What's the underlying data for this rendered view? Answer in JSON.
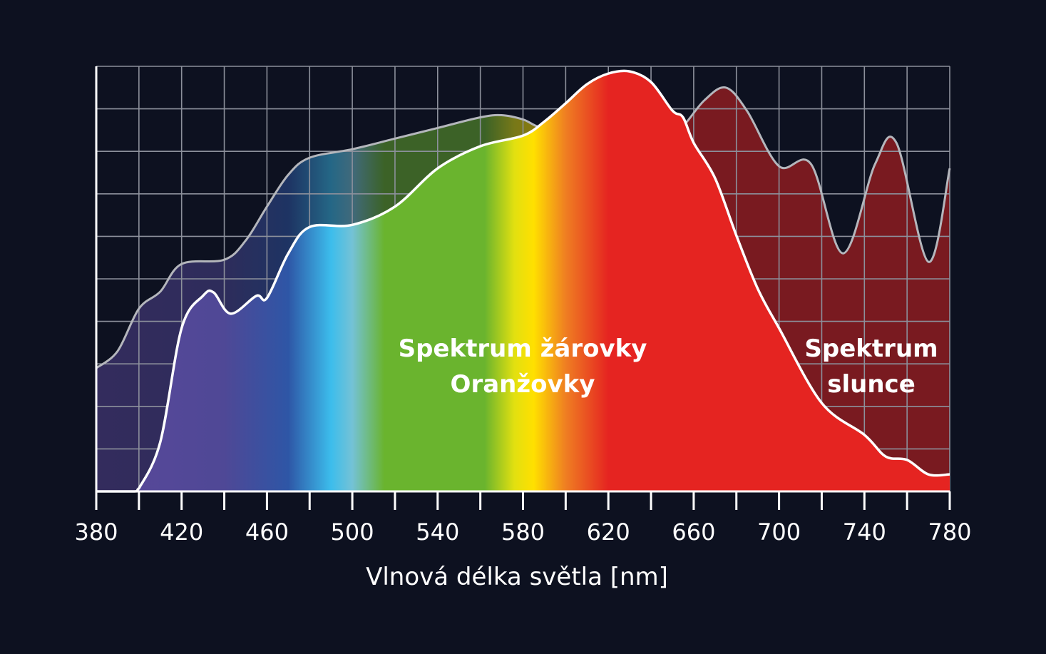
{
  "chart_data": {
    "type": "area",
    "title": "",
    "xlabel": "Vlnová délka světla [nm]",
    "ylabel": "",
    "xlim": [
      380,
      780
    ],
    "ylim": [
      0,
      10
    ],
    "grid": true,
    "x_ticks": [
      380,
      420,
      460,
      500,
      540,
      580,
      620,
      660,
      700,
      740,
      780
    ],
    "x_tick_labels": [
      "380",
      "420",
      "460",
      "500",
      "540",
      "580",
      "620",
      "660",
      "700",
      "740",
      "780"
    ],
    "series": [
      {
        "name": "Spektrum slunce",
        "label_lines": [
          "Spektrum",
          "slunce"
        ],
        "x": [
          380,
          390,
          400,
          410,
          420,
          440,
          450,
          460,
          470,
          480,
          500,
          520,
          540,
          560,
          570,
          580,
          590,
          610,
          630,
          650,
          655,
          665,
          675,
          685,
          700,
          715,
          730,
          745,
          755,
          770,
          780
        ],
        "y": [
          2.9,
          3.3,
          4.3,
          4.7,
          5.35,
          5.45,
          5.9,
          6.7,
          7.45,
          7.85,
          8.05,
          8.3,
          8.55,
          8.8,
          8.85,
          8.75,
          8.55,
          8.6,
          8.65,
          8.6,
          8.6,
          9.2,
          9.5,
          8.95,
          7.65,
          7.7,
          5.6,
          7.7,
          8.2,
          5.4,
          7.6
        ],
        "stroke": "#b4b6bc"
      },
      {
        "name": "Spektrum žárovky Oranžovky",
        "label_lines": [
          "Spektrum žárovky",
          "Oranžovky"
        ],
        "x": [
          380,
          398,
          400,
          410,
          420,
          430,
          435,
          443,
          455,
          460,
          470,
          480,
          500,
          520,
          540,
          560,
          580,
          590,
          600,
          610,
          620,
          630,
          640,
          650,
          655,
          660,
          670,
          680,
          690,
          700,
          720,
          740,
          750,
          760,
          770,
          780
        ],
        "y": [
          0,
          0,
          0.07,
          1.16,
          3.84,
          4.6,
          4.68,
          4.18,
          4.6,
          4.55,
          5.6,
          6.22,
          6.27,
          6.7,
          7.6,
          8.12,
          8.37,
          8.7,
          9.13,
          9.58,
          9.83,
          9.88,
          9.63,
          8.96,
          8.8,
          8.2,
          7.37,
          6.02,
          4.77,
          3.84,
          2.08,
          1.33,
          0.82,
          0.74,
          0.4,
          0.4
        ],
        "stroke": "#ffffff"
      }
    ],
    "spectrum_colors": [
      {
        "nm": 380,
        "color": "#5a479a"
      },
      {
        "nm": 440,
        "color": "#4f4896"
      },
      {
        "nm": 470,
        "color": "#2e56a6"
      },
      {
        "nm": 490,
        "color": "#3cbdec"
      },
      {
        "nm": 500,
        "color": "#74c2d6"
      },
      {
        "nm": 515,
        "color": "#6ab42e"
      },
      {
        "nm": 562,
        "color": "#6ab42e"
      },
      {
        "nm": 576,
        "color": "#e2e010"
      },
      {
        "nm": 585,
        "color": "#ffe000"
      },
      {
        "nm": 600,
        "color": "#ef7e22"
      },
      {
        "nm": 620,
        "color": "#e52421"
      },
      {
        "nm": 780,
        "color": "#e52421"
      }
    ],
    "background": "#0d1120"
  }
}
